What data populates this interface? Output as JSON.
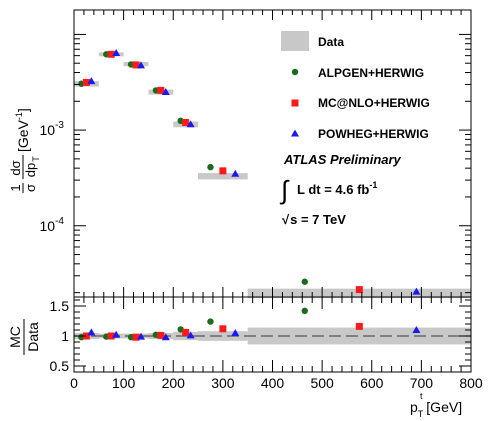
{
  "chart_data": [
    {
      "type": "scatter",
      "panel": "main",
      "ylabel_parts": {
        "frac_num": "1",
        "frac_den": "σ",
        "deriv_num": "dσ",
        "deriv_den": "dp",
        "sub": "T",
        "unit": "[GeV",
        "unit_sup": "-1",
        "unit_close": "]"
      },
      "yscale": "log",
      "ylim": [
        1.8e-05,
        0.018
      ],
      "xlim": [
        0,
        800
      ],
      "y_tick_labels": [
        {
          "base": "10",
          "exp": "-3",
          "value": 0.001
        },
        {
          "base": "10",
          "exp": "-4",
          "value": 0.0001
        }
      ],
      "data_band": {
        "label": "Data",
        "color": "#c8c8c8",
        "bins": [
          {
            "x0": 0,
            "x1": 50,
            "y": 0.00305,
            "lo": 0.00285,
            "hi": 0.00325
          },
          {
            "x0": 50,
            "x1": 100,
            "y": 0.0062,
            "lo": 0.0059,
            "hi": 0.0065
          },
          {
            "x0": 100,
            "x1": 150,
            "y": 0.0049,
            "lo": 0.00465,
            "hi": 0.00515
          },
          {
            "x0": 150,
            "x1": 200,
            "y": 0.0025,
            "lo": 0.00235,
            "hi": 0.00265
          },
          {
            "x0": 200,
            "x1": 250,
            "y": 0.00115,
            "lo": 0.00107,
            "hi": 0.00123
          },
          {
            "x0": 250,
            "x1": 350,
            "y": 0.00033,
            "lo": 0.000305,
            "hi": 0.000355
          },
          {
            "x0": 350,
            "x1": 800,
            "y": 1.95e-05,
            "lo": 1.75e-05,
            "hi": 2.2e-05
          }
        ]
      },
      "series": [
        {
          "name": "ALPGEN+HERWIG",
          "marker": "circle",
          "color": "#1a6b1a",
          "x": [
            15,
            65,
            115,
            165,
            215,
            275,
            465
          ],
          "y": [
            0.00305,
            0.0062,
            0.00485,
            0.0026,
            0.00125,
            0.00041,
            2.6e-05
          ]
        },
        {
          "name": "MC@NLO+HERWIG",
          "marker": "square",
          "color": "#ff1a1a",
          "x": [
            25,
            75,
            125,
            175,
            225,
            300,
            575
          ],
          "y": [
            0.00315,
            0.0062,
            0.0048,
            0.0026,
            0.0012,
            0.000375,
            2.15e-05
          ]
        },
        {
          "name": "POWHEG+HERWIG",
          "marker": "triangle",
          "color": "#1a1aee",
          "x": [
            35,
            85,
            135,
            185,
            235,
            325,
            690
          ],
          "y": [
            0.00325,
            0.0064,
            0.00475,
            0.0025,
            0.00115,
            0.00035,
            2.05e-05
          ]
        }
      ],
      "annotations": {
        "atlas": "ATLAS Preliminary",
        "lumi_int": "∫",
        "lumi_text": "L dt = 4.6 fb",
        "lumi_sup": "-1",
        "energy_sqrt": "√",
        "energy_text": "s = 7 TeV"
      },
      "legend_position": "top-right"
    },
    {
      "type": "scatter",
      "panel": "ratio",
      "ylabel_num": "MC",
      "ylabel_den": "Data",
      "xlabel_main": "p",
      "xlabel_sup": "t",
      "xlabel_sub": "T",
      "xlabel_unit": "[GeV]",
      "xlim": [
        0,
        800
      ],
      "ylim": [
        0.4,
        1.65
      ],
      "x_ticks": [
        0,
        100,
        200,
        300,
        400,
        500,
        600,
        700,
        800
      ],
      "y_ticks": [
        0.5,
        1,
        1.5
      ],
      "y_tick_labels": [
        "0.5",
        "1",
        "1.5"
      ],
      "reference_line": 1,
      "data_band_bins": [
        {
          "x0": 0,
          "x1": 50,
          "lo": 0.95,
          "hi": 1.05
        },
        {
          "x0": 50,
          "x1": 100,
          "lo": 0.96,
          "hi": 1.04
        },
        {
          "x0": 100,
          "x1": 150,
          "lo": 0.96,
          "hi": 1.04
        },
        {
          "x0": 150,
          "x1": 200,
          "lo": 0.95,
          "hi": 1.05
        },
        {
          "x0": 200,
          "x1": 250,
          "lo": 0.93,
          "hi": 1.07
        },
        {
          "x0": 250,
          "x1": 350,
          "lo": 0.92,
          "hi": 1.08
        },
        {
          "x0": 350,
          "x1": 800,
          "lo": 0.86,
          "hi": 1.14
        }
      ],
      "series": [
        {
          "name": "ALPGEN+HERWIG",
          "marker": "circle",
          "color": "#1a6b1a",
          "x": [
            15,
            65,
            115,
            165,
            215,
            275,
            465
          ],
          "y": [
            0.98,
            0.99,
            0.98,
            1.02,
            1.11,
            1.24,
            1.42
          ]
        },
        {
          "name": "MC@NLO+HERWIG",
          "marker": "square",
          "color": "#ff1a1a",
          "x": [
            25,
            75,
            125,
            175,
            225,
            300,
            575
          ],
          "y": [
            1.0,
            1.0,
            0.98,
            1.01,
            1.06,
            1.12,
            1.16
          ]
        },
        {
          "name": "POWHEG+HERWIG",
          "marker": "triangle",
          "color": "#1a1aee",
          "x": [
            35,
            85,
            135,
            185,
            235,
            325,
            690
          ],
          "y": [
            1.06,
            1.02,
            0.99,
            0.98,
            1.01,
            1.05,
            1.1
          ]
        }
      ]
    }
  ]
}
